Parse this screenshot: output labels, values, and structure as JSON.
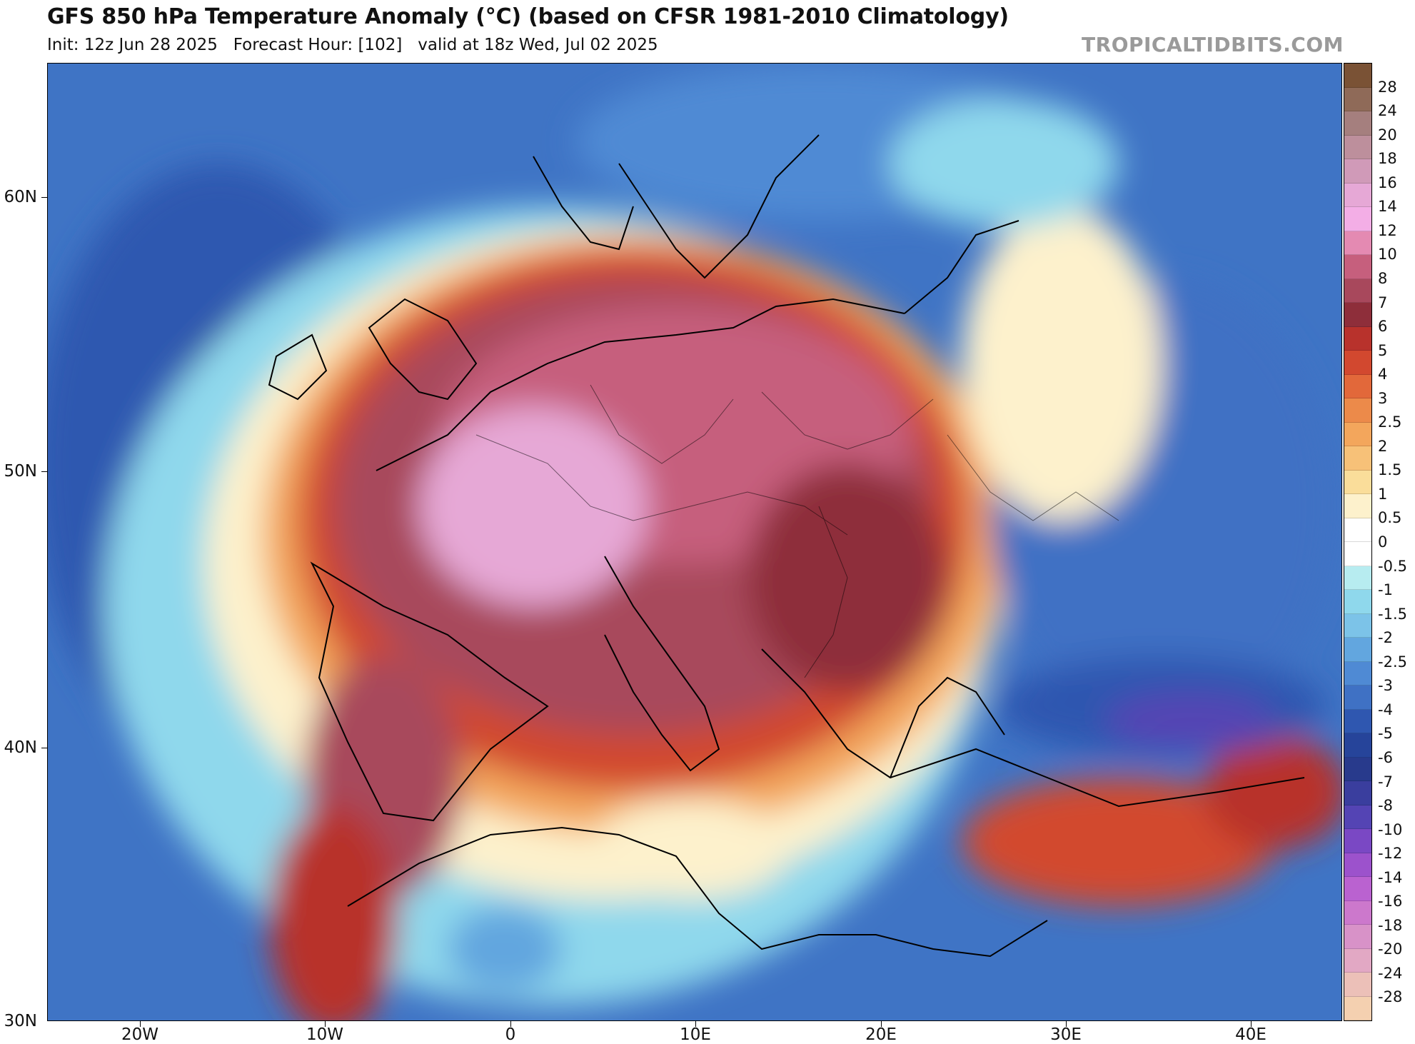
{
  "header": {
    "title": "GFS 850 hPa Temperature Anomaly (°C) (based on CFSR 1981-2010 Climatology)",
    "subtitle": "Init: 12z Jun 28 2025   Forecast Hour: [102]   valid at 18z Wed, Jul 02 2025",
    "watermark": "TROPICALTIDBITS.COM"
  },
  "map": {
    "lat_labels": [
      "60N",
      "50N",
      "40N",
      "30N"
    ],
    "lon_labels": [
      "20W",
      "10W",
      "0",
      "10E",
      "20E",
      "30E",
      "40E"
    ]
  },
  "colorbar": {
    "labels": [
      "28",
      "24",
      "20",
      "18",
      "16",
      "14",
      "12",
      "10",
      "8",
      "7",
      "6",
      "5",
      "4",
      "3",
      "2.5",
      "2",
      "1.5",
      "1",
      "0.5",
      "0",
      "-0.5",
      "-1",
      "-1.5",
      "-2",
      "-2.5",
      "-3",
      "-4",
      "-5",
      "-6",
      "-7",
      "-8",
      "-10",
      "-12",
      "-14",
      "-16",
      "-18",
      "-20",
      "-24",
      "-28"
    ],
    "colors": [
      "#7a5235",
      "#8f6a58",
      "#a57f7e",
      "#bd8f9c",
      "#d09ab8",
      "#e6a8d6",
      "#f3aee6",
      "#e48ab2",
      "#c65f7d",
      "#a8485c",
      "#8e2e3a",
      "#b8322c",
      "#d2482f",
      "#e2683a",
      "#ec8a4a",
      "#f3a65c",
      "#f7c178",
      "#fadd9a",
      "#fdf1cc",
      "#ffffff",
      "#ffffff",
      "#b7ecf0",
      "#8fd8ec",
      "#7cc3e8",
      "#62a6df",
      "#4f8ad4",
      "#3f71c4",
      "#2f57b0",
      "#26449a",
      "#283a8c",
      "#3a3e9e",
      "#5444b4",
      "#7a48c4",
      "#9c52cc",
      "#ba62d0",
      "#cc78cc",
      "#d892c8",
      "#e2a8c4",
      "#ecc0b8",
      "#f4d0b0"
    ]
  }
}
